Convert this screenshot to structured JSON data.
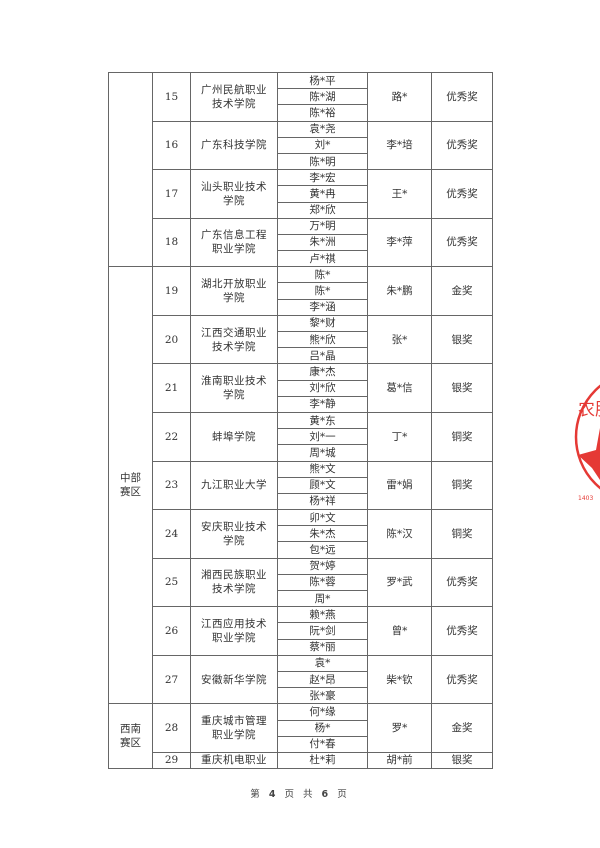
{
  "regions": [
    {
      "name": "",
      "groups": [
        {
          "no": "15",
          "school": "广州民航职业技术学院",
          "students": [
            "杨*平",
            "陈*湖",
            "陈*裕"
          ],
          "teacher": "路*",
          "award": "优秀奖"
        },
        {
          "no": "16",
          "school": "广东科技学院",
          "students": [
            "袁*尧",
            "刘*",
            "陈*明"
          ],
          "teacher": "李*培",
          "award": "优秀奖"
        },
        {
          "no": "17",
          "school": "汕头职业技术学院",
          "students": [
            "李*宏",
            "黄*冉",
            "郑*欣"
          ],
          "teacher": "王*",
          "award": "优秀奖"
        },
        {
          "no": "18",
          "school": "广东信息工程职业学院",
          "students": [
            "万*明",
            "朱*洲",
            "卢*祺"
          ],
          "teacher": "李*萍",
          "award": "优秀奖"
        }
      ]
    },
    {
      "name": "中部赛区",
      "groups": [
        {
          "no": "19",
          "school": "湖北开放职业学院",
          "students": [
            "陈*",
            "陈*",
            "李*涵"
          ],
          "teacher": "朱*鹏",
          "award": "金奖"
        },
        {
          "no": "20",
          "school": "江西交通职业技术学院",
          "students": [
            "黎*财",
            "熊*欣",
            "吕*晶"
          ],
          "teacher": "张*",
          "award": "银奖"
        },
        {
          "no": "21",
          "school": "淮南职业技术学院",
          "students": [
            "康*杰",
            "刘*欣",
            "李*静"
          ],
          "teacher": "葛*信",
          "award": "银奖"
        },
        {
          "no": "22",
          "school": "蚌埠学院",
          "students": [
            "黄*东",
            "刘*一",
            "周*城"
          ],
          "teacher": "丁*",
          "award": "铜奖"
        },
        {
          "no": "23",
          "school": "九江职业大学",
          "students": [
            "熊*文",
            "顾*文",
            "杨*祥"
          ],
          "teacher": "雷*娟",
          "award": "铜奖"
        },
        {
          "no": "24",
          "school": "安庆职业技术学院",
          "students": [
            "卯*文",
            "朱*杰",
            "包*远"
          ],
          "teacher": "陈*汉",
          "award": "铜奖"
        },
        {
          "no": "25",
          "school": "湘西民族职业技术学院",
          "students": [
            "贺*婷",
            "陈*蓉",
            "周*"
          ],
          "teacher": "罗*武",
          "award": "优秀奖"
        },
        {
          "no": "26",
          "school": "江西应用技术职业学院",
          "students": [
            "赖*燕",
            "阮*剑",
            "蔡*丽"
          ],
          "teacher": "曾*",
          "award": "优秀奖"
        },
        {
          "no": "27",
          "school": "安徽新华学院",
          "students": [
            "袁*",
            "赵*昂",
            "张*豪"
          ],
          "teacher": "柴*钦",
          "award": "优秀奖"
        }
      ]
    },
    {
      "name": "西南赛区",
      "groups": [
        {
          "no": "28",
          "school": "重庆城市管理职业学院",
          "students": [
            "何*缘",
            "杨*",
            "付*春"
          ],
          "teacher": "罗*",
          "award": "金奖"
        },
        {
          "no": "29",
          "school": "重庆机电职业",
          "students": [
            "杜*莉"
          ],
          "teacher": "胡*前",
          "award": "银奖"
        }
      ]
    }
  ],
  "footer": {
    "prefix": "第",
    "page": "4",
    "mid1": "页 共",
    "total": "6",
    "suffix": "页"
  },
  "seal": {
    "text": "…农股…",
    "color": "#e53935"
  }
}
